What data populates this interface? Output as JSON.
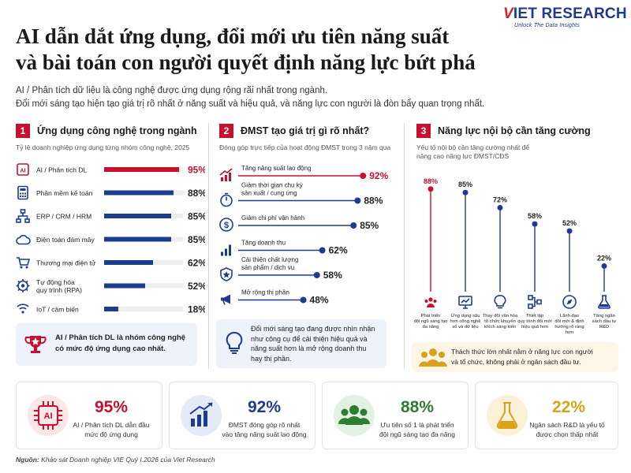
{
  "brand": {
    "name_v": "V",
    "name_rest": "IET RESEARCH",
    "tagline": "Unlock The Data Insights"
  },
  "header": {
    "title_line1": "AI dẫn dắt ứng dụng, đổi mới ưu tiên năng suất",
    "title_line2": "và bài toán con người quyết định năng lực bứt phá",
    "subtitle_line1": "AI / Phân tích dữ liệu là công nghệ được ứng dụng rộng rãi nhất trong ngành.",
    "subtitle_line2": "Đổi mới sáng tạo hiện tạo giá trị rõ nhất ở năng suất và hiệu quả, và năng lực con người là đòn bẩy quan trọng nhất."
  },
  "colors": {
    "accent": "#c8102e",
    "navy": "#1d3b8f",
    "green": "#2e7d32",
    "gold": "#d9a21b",
    "track": "#d9d9d9",
    "callout_bg": "#eef2fa"
  },
  "sections": [
    {
      "num": "1",
      "title": "Ứng dụng công nghệ trong ngành",
      "subtitle": "Tỷ lệ doanh nghiệp ứng dụng từng nhóm công nghệ, 2025"
    },
    {
      "num": "2",
      "title": "ĐMST tạo giá trị gì rõ nhất?",
      "subtitle": "Đóng góp trực tiếp của hoạt động ĐMST trong 3 năm qua"
    },
    {
      "num": "3",
      "title": "Năng lực nội bộ cần tăng cường",
      "subtitle_line1": "Yếu tố nội bộ cần tăng cường nhất để",
      "subtitle_line2": "nâng cao năng lực ĐMST/CĐS"
    }
  ],
  "chart_data": [
    {
      "type": "bar",
      "orientation": "horizontal",
      "categories": [
        "AI / Phân tích DL",
        "Phần mềm kế toán",
        "ERP / CRM / HRM",
        "Điện toán đám mây",
        "Thương mại điện tử",
        "Tự động hóa quy trình (RPA)",
        "IoT / cảm biến"
      ],
      "label_lines": [
        [
          "AI / Phân tích DL"
        ],
        [
          "Phần mềm kế toán"
        ],
        [
          "ERP / CRM / HRM"
        ],
        [
          "Điện toán đám mây"
        ],
        [
          "Thương mại điện tử"
        ],
        [
          "Tự động hóa",
          "quy trình (RPA)"
        ],
        [
          "IoT / cảm biến"
        ]
      ],
      "values": [
        95,
        88,
        85,
        85,
        62,
        52,
        18
      ],
      "value_labels": [
        "95%",
        "88%",
        "85%",
        "85%",
        "62%",
        "52%",
        "18%"
      ],
      "highlight_index": 0,
      "icons": [
        "ai-chip-icon",
        "calculator-icon",
        "network-icon",
        "cloud-icon",
        "shopping-cart-icon",
        "robot-arm-icon",
        "sensor-icon"
      ],
      "xlim": [
        0,
        100
      ],
      "title": "Ứng dụng công nghệ trong ngành",
      "grid": false
    },
    {
      "type": "dot",
      "orientation": "horizontal",
      "categories": [
        "Tăng năng suất lao động",
        "Giảm thời gian chu kỳ sản xuất / cung ứng",
        "Giảm chi phí vận hành",
        "Tăng doanh thu",
        "Cải thiện chất lượng sản phẩm / dịch vụ",
        "Mở rộng thị phần"
      ],
      "label_lines": [
        [
          "Tăng năng suất lao động"
        ],
        [
          "Giảm thời gian chu kỳ",
          "sản xuất / cung ứng"
        ],
        [
          "Giảm chi phí vận hành"
        ],
        [
          "Tăng doanh thu"
        ],
        [
          "Cải thiện chất lượng",
          "sản phẩm / dịch vụ"
        ],
        [
          "Mở rộng thị phần"
        ]
      ],
      "values": [
        92,
        88,
        85,
        62,
        58,
        48
      ],
      "value_labels": [
        "92%",
        "88%",
        "85%",
        "62%",
        "58%",
        "48%"
      ],
      "highlight_index": 0,
      "icons": [
        "growth-chart-icon",
        "stopwatch-icon",
        "dollar-icon",
        "rising-bars-icon",
        "quality-badge-icon",
        "megaphone-icon"
      ],
      "xlim": [
        0,
        100
      ],
      "title": "ĐMST tạo giá trị gì rõ nhất?",
      "grid": false
    },
    {
      "type": "lollipop",
      "orientation": "vertical",
      "categories": [
        "Phát triển đội ngũ sáng tạo đa năng",
        "Ứng dụng sâu hơn công nghệ số và dữ liệu",
        "Thay đổi văn hóa tổ chức khuyến khích sáng kiến",
        "Thiết lập quy trình đổi mới hiệu quả hơn",
        "Lãnh đạo đổi mới & định hướng rõ ràng hơn",
        "Tăng ngân sách đầu tư R&D"
      ],
      "label_lines": [
        [
          "Phát triển",
          "đội ngũ sáng tạo",
          "đa năng"
        ],
        [
          "Ứng dụng sâu",
          "hơn công nghệ",
          "số và dữ liệu"
        ],
        [
          "Thay đổi văn hóa",
          "tổ chức khuyến",
          "khích sáng kiến"
        ],
        [
          "Thiết lập",
          "quy trình đổi mới",
          "hiệu quả hơn"
        ],
        [
          "Lãnh đạo",
          "đổi mới & định",
          "hướng rõ ràng",
          "hơn"
        ],
        [
          "Tăng ngân",
          "sách đầu tư",
          "R&D"
        ]
      ],
      "values": [
        88,
        85,
        72,
        58,
        52,
        22
      ],
      "value_labels": [
        "88%",
        "85%",
        "72%",
        "58%",
        "52%",
        "22%"
      ],
      "highlight_index": 0,
      "icons": [
        "team-icon",
        "monitor-data-icon",
        "lightbulb-icon",
        "workflow-icon",
        "compass-icon",
        "flask-icon"
      ],
      "ylim": [
        0,
        100
      ],
      "title": "Năng lực nội bộ cần tăng cường",
      "grid": false
    }
  ],
  "callouts": {
    "c1_line1": "AI / Phân tích DL là nhóm công nghệ",
    "c1_line2": "có mức độ ứng dụng cao nhất.",
    "c2_line1": "Đổi mới sáng tạo đang được nhìn nhận",
    "c2_line2": "như công cụ để cải thiện hiệu quả và",
    "c2_line3": "năng suất hơn là mở rộng doanh thu",
    "c2_line4": "hay thị phần.",
    "c3_line1": "Thách thức lớn nhất nằm ở năng lực con người",
    "c3_line2": "và tổ chức, không phải ở ngân sách đầu tư."
  },
  "kpis": [
    {
      "value": "95%",
      "line1": "AI / Phân tích DL dẫn đầu",
      "line2": "mức độ ứng dụng",
      "color": "#c8102e",
      "icon": "ai-chip-icon"
    },
    {
      "value": "92%",
      "line1": "ĐMST đóng góp rõ nhất",
      "line2": "vào tăng năng suất lao động",
      "color": "#1d3b8f",
      "icon": "growth-chart-icon"
    },
    {
      "value": "88%",
      "line1": "Ưu tiên số 1 là phát triển",
      "line2": "đội ngũ sáng tạo đa năng",
      "color": "#2e7d32",
      "icon": "team-icon"
    },
    {
      "value": "22%",
      "line1": "Ngân sách R&D là yếu tố",
      "line2": "được chọn thấp nhất",
      "color": "#d9a21b",
      "icon": "flask-icon"
    }
  ],
  "source": {
    "label": "Nguồn:",
    "text": "Khảo sát Doanh nghiệp VIE Quý I.2026 của Viet Research"
  }
}
